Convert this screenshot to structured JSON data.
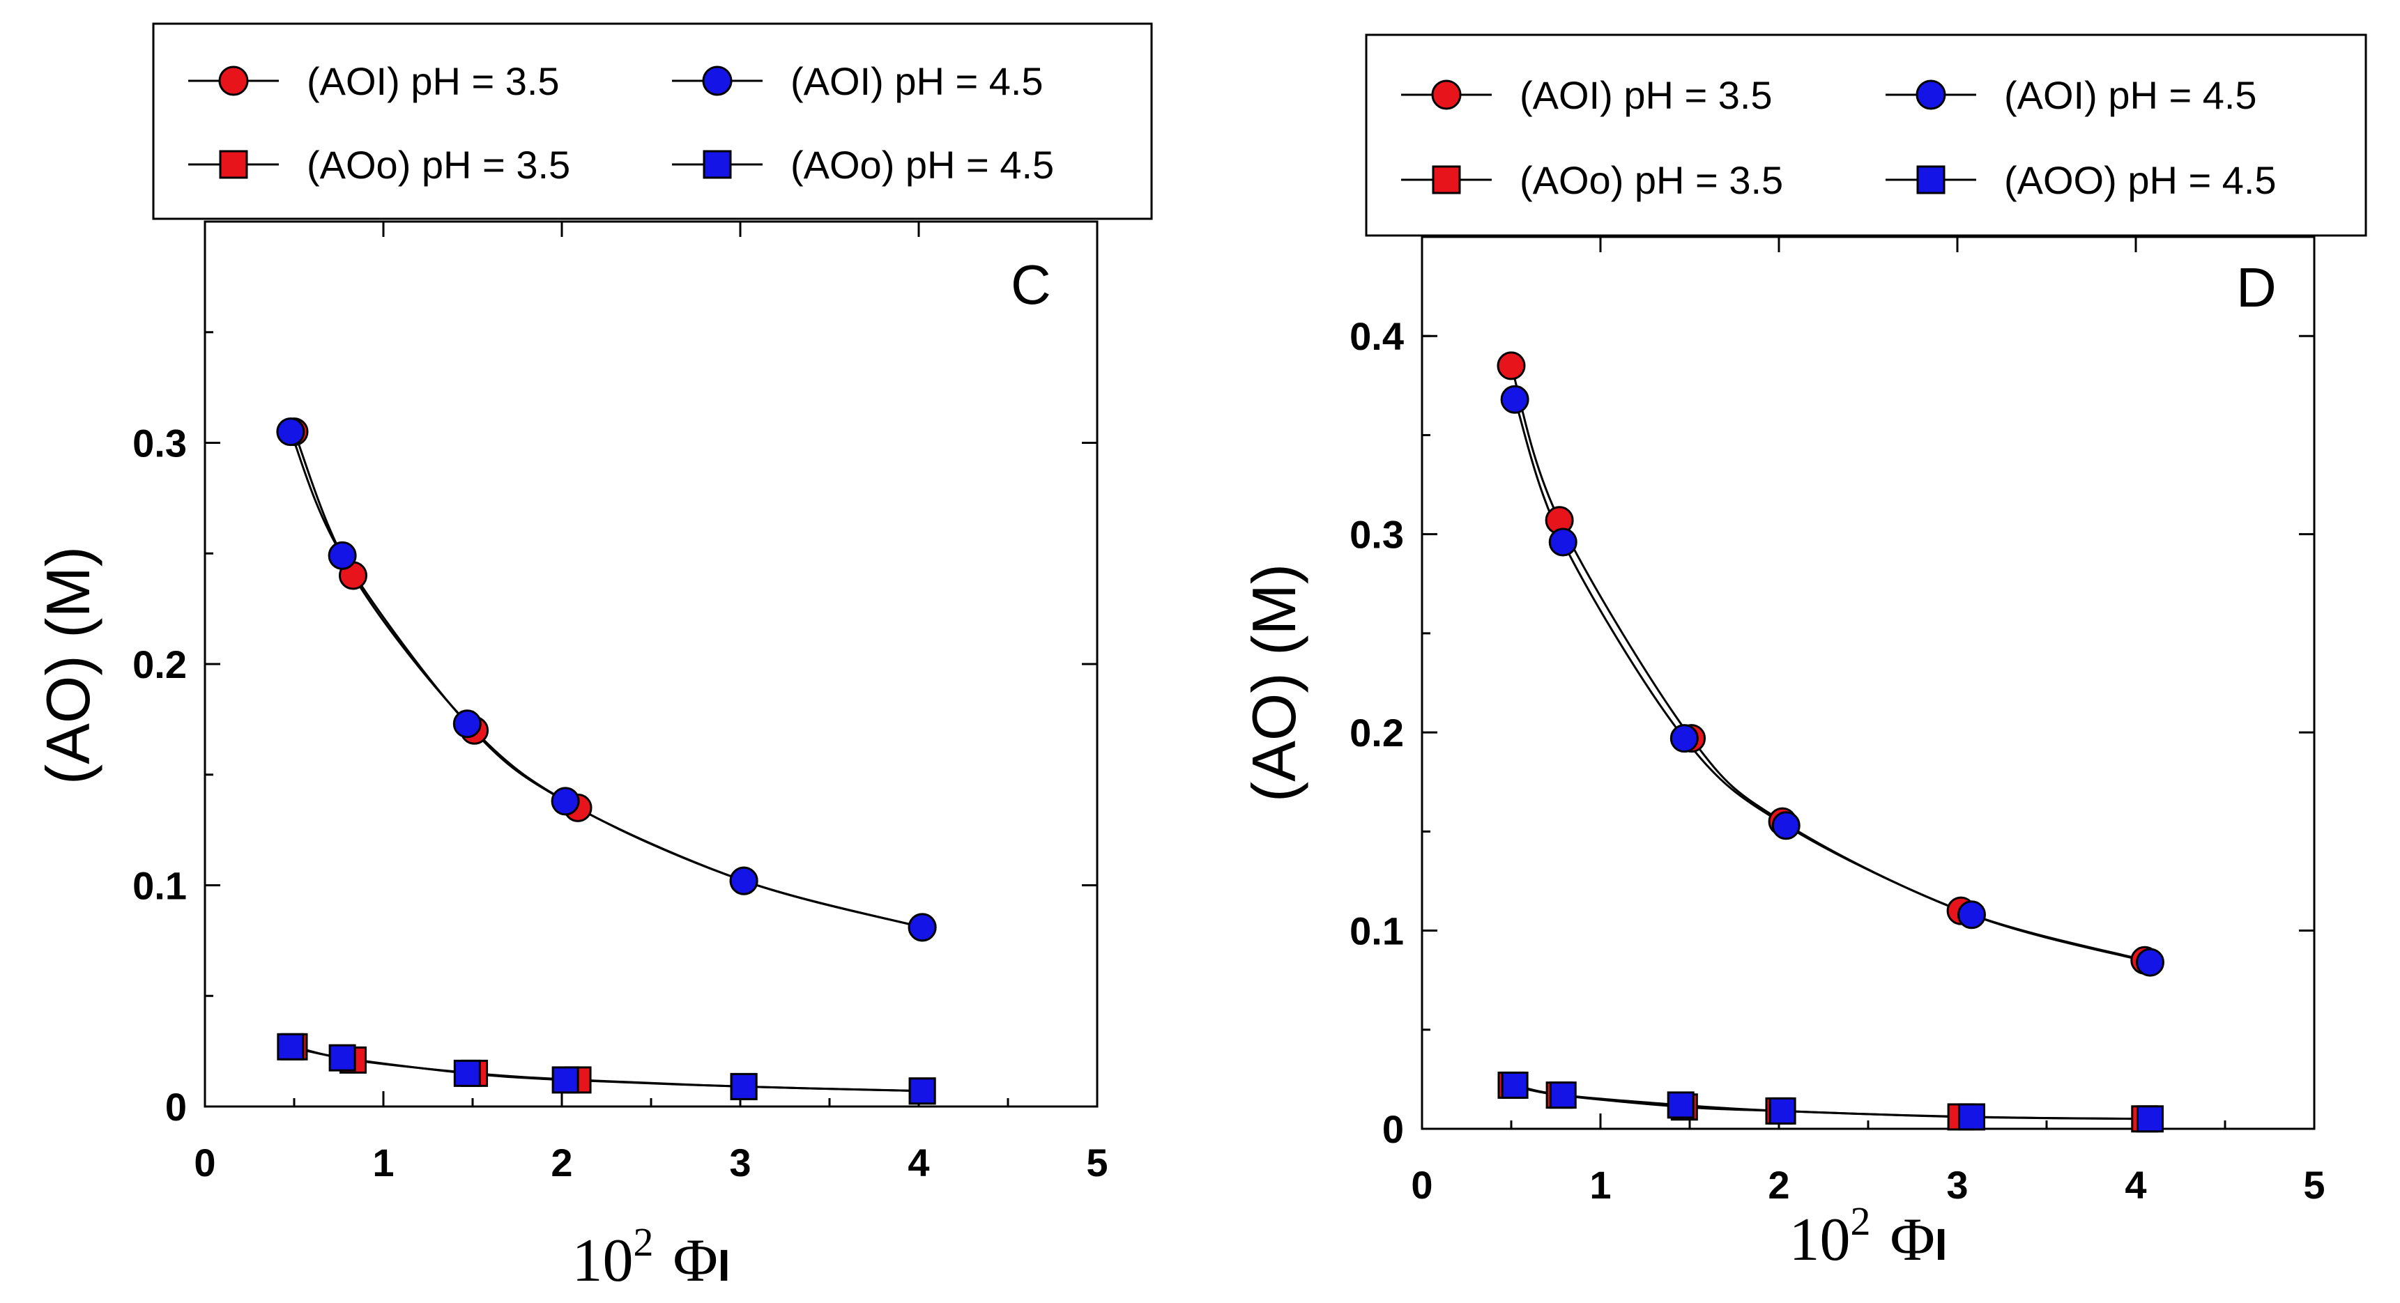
{
  "chart_data": [
    {
      "type": "line",
      "panel_label": "C",
      "xlabel": "10",
      "xlabel_sup": "2",
      "xlabel_symbol": "Φ",
      "xlabel_sub": "I",
      "ylabel": "(AO) (M)",
      "xlim": [
        0,
        5
      ],
      "ylim": [
        0,
        0.4
      ],
      "x_ticks": [
        "0",
        "1",
        "2",
        "3",
        "4",
        "5"
      ],
      "y_ticks": [
        "0",
        "0.1",
        "0.2",
        "0.3"
      ],
      "legend": {
        "position": "top",
        "entries": [
          {
            "label": "(AOI)  pH = 3.5",
            "color": "#e8141b",
            "marker": "circle"
          },
          {
            "label": "(AOI)  pH = 4.5",
            "color": "#1414e6",
            "marker": "circle"
          },
          {
            "label": "(AOo) pH = 3.5",
            "color": "#e8141b",
            "marker": "square"
          },
          {
            "label": "(AOo) pH = 4.5",
            "color": "#1414e6",
            "marker": "square"
          }
        ]
      },
      "series": [
        {
          "name": "(AOI) pH = 3.5",
          "marker": "circle",
          "color": "#e8141b",
          "x": [
            0.5,
            0.83,
            1.51,
            2.09,
            3.02,
            4.02
          ],
          "y": [
            0.305,
            0.24,
            0.17,
            0.135,
            0.102,
            0.081
          ]
        },
        {
          "name": "(AOI) pH = 4.5",
          "marker": "circle",
          "color": "#1414e6",
          "x": [
            0.48,
            0.77,
            1.47,
            2.02,
            3.02,
            4.02
          ],
          "y": [
            0.305,
            0.249,
            0.173,
            0.138,
            0.102,
            0.081
          ]
        },
        {
          "name": "(AOo) pH = 3.5",
          "marker": "square",
          "color": "#e8141b",
          "x": [
            0.5,
            0.83,
            1.51,
            2.09,
            3.02,
            4.02
          ],
          "y": [
            0.027,
            0.021,
            0.015,
            0.012,
            0.009,
            0.007
          ]
        },
        {
          "name": "(AOo) pH = 4.5",
          "marker": "square",
          "color": "#1414e6",
          "x": [
            0.48,
            0.77,
            1.47,
            2.02,
            3.02,
            4.02
          ],
          "y": [
            0.027,
            0.022,
            0.015,
            0.012,
            0.009,
            0.007
          ]
        }
      ]
    },
    {
      "type": "line",
      "panel_label": "D",
      "xlabel": "10",
      "xlabel_sup": "2",
      "xlabel_symbol": "Φ",
      "xlabel_sub": "I",
      "ylabel": "(AO) (M)",
      "xlim": [
        0,
        5
      ],
      "ylim": [
        0,
        0.45
      ],
      "x_ticks": [
        "0",
        "1",
        "2",
        "3",
        "4",
        "5"
      ],
      "y_ticks": [
        "0",
        "0.1",
        "0.2",
        "0.3",
        "0.4"
      ],
      "legend": {
        "position": "top",
        "entries": [
          {
            "label": "(AOI)  pH = 3.5",
            "color": "#e8141b",
            "marker": "circle"
          },
          {
            "label": "(AOI)  pH = 4.5",
            "color": "#1414e6",
            "marker": "circle"
          },
          {
            "label": "(AOo) pH = 3.5",
            "color": "#e8141b",
            "marker": "square"
          },
          {
            "label": "(AOO) pH = 4.5",
            "color": "#1414e6",
            "marker": "square"
          }
        ]
      },
      "series": [
        {
          "name": "(AOI) pH = 3.5",
          "marker": "circle",
          "color": "#e8141b",
          "x": [
            0.5,
            0.77,
            1.51,
            2.02,
            3.02,
            4.05
          ],
          "y": [
            0.385,
            0.307,
            0.197,
            0.155,
            0.11,
            0.085
          ]
        },
        {
          "name": "(AOI) pH = 4.5",
          "marker": "circle",
          "color": "#1414e6",
          "x": [
            0.52,
            0.79,
            1.47,
            2.04,
            3.08,
            4.08
          ],
          "y": [
            0.368,
            0.296,
            0.197,
            0.153,
            0.108,
            0.084
          ]
        },
        {
          "name": "(AOo) pH = 3.5",
          "marker": "square",
          "color": "#e8141b",
          "x": [
            0.5,
            0.77,
            1.47,
            2.0,
            3.02,
            4.05
          ],
          "y": [
            0.022,
            0.017,
            0.011,
            0.009,
            0.006,
            0.005
          ]
        },
        {
          "name": "(AOO) pH = 4.5",
          "marker": "square",
          "color": "#1414e6",
          "x": [
            0.52,
            0.79,
            1.45,
            2.02,
            3.08,
            4.08
          ],
          "y": [
            0.022,
            0.017,
            0.012,
            0.009,
            0.006,
            0.005
          ]
        }
      ]
    }
  ]
}
